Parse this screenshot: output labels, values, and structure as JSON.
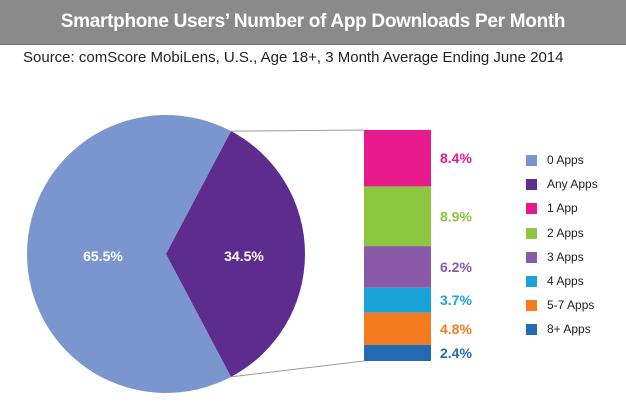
{
  "header": {
    "title": "Smartphone Users’ Number of App Downloads Per Month",
    "subtitle": "Source: comScore MobiLens, U.S., Age 18+, 3 Month Average Ending June 2014"
  },
  "chart_data": [
    {
      "type": "pie",
      "title": "",
      "slices": [
        {
          "name": "0 Apps",
          "value": 65.5,
          "label": "65.5%",
          "color": "#7b96cf"
        },
        {
          "name": "Any Apps",
          "value": 34.5,
          "label": "34.5%",
          "color": "#5e2c8e"
        }
      ]
    },
    {
      "type": "bar",
      "stacked": true,
      "title": "",
      "breakdown_of": "Any Apps",
      "categories": [
        "1 App",
        "2 Apps",
        "3 Apps",
        "4 Apps",
        "5-7 Apps",
        "8+ Apps"
      ],
      "values": [
        8.4,
        8.9,
        6.2,
        3.7,
        4.8,
        2.4
      ],
      "labels": [
        "8.4%",
        "8.9%",
        "6.2%",
        "3.7%",
        "4.8%",
        "2.4%"
      ],
      "colors": [
        "#e8198b",
        "#8dc63f",
        "#8a5aa8",
        "#1aa3d9",
        "#f47b20",
        "#2469b3"
      ]
    }
  ],
  "legend": [
    {
      "label": "0 Apps",
      "color": "#7b96cf"
    },
    {
      "label": "Any Apps",
      "color": "#5e2c8e"
    },
    {
      "label": "1 App",
      "color": "#e8198b"
    },
    {
      "label": "2 Apps",
      "color": "#8dc63f"
    },
    {
      "label": "3 Apps",
      "color": "#8a5aa8"
    },
    {
      "label": "4 Apps",
      "color": "#1aa3d9"
    },
    {
      "label": "5-7 Apps",
      "color": "#f47b20"
    },
    {
      "label": "8+ Apps",
      "color": "#2469b3"
    }
  ],
  "legend_placement": "right"
}
